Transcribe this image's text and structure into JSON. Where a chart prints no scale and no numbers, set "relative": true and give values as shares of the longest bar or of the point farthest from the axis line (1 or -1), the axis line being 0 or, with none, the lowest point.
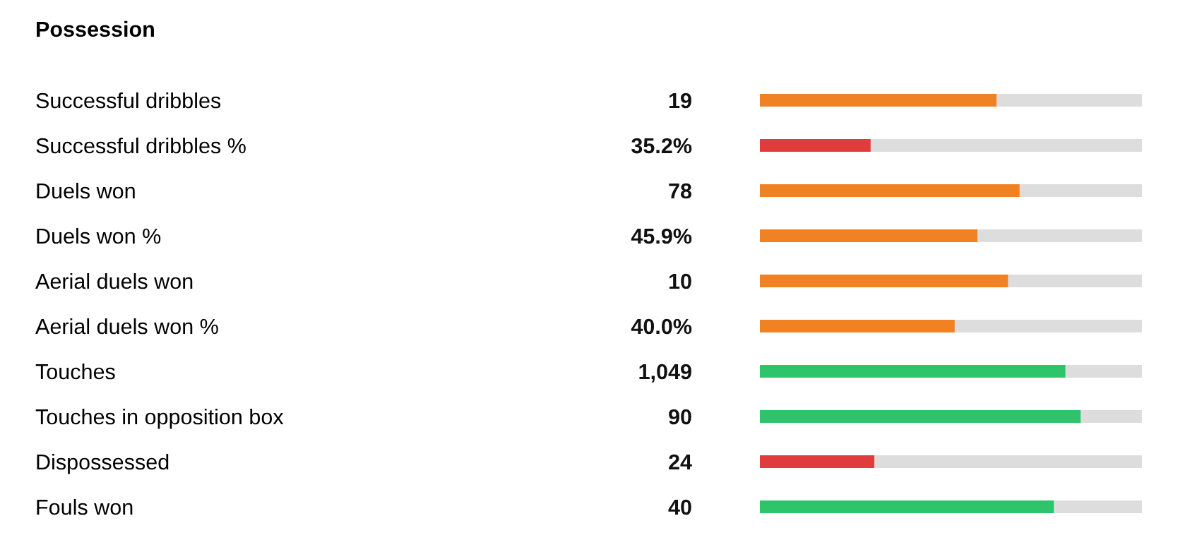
{
  "chart_data": {
    "type": "bar",
    "title": "Possession",
    "orientation": "horizontal",
    "stacked": true,
    "relative": true,
    "grid": false,
    "categories": [
      "Successful dribbles",
      "Successful dribbles %",
      "Duels won",
      "Duels won %",
      "Aerial duels won",
      "Aerial duels won %",
      "Touches",
      "Touches in opposition box",
      "Dispossessed",
      "Fouls won"
    ],
    "value_labels": [
      "19",
      "35.2%",
      "78",
      "45.9%",
      "10",
      "40.0%",
      "1,049",
      "90",
      "24",
      "40"
    ],
    "series": [
      {
        "colors": [
          "#f08224",
          "#e03c3c",
          "#f08224",
          "#f08224",
          "#f08224",
          "#f08224",
          "#2ec46c",
          "#2ec46c",
          "#e03c3c",
          "#2ec46c"
        ],
        "values": [
          0.62,
          0.29,
          0.68,
          0.57,
          0.65,
          0.51,
          0.8,
          0.84,
          0.3,
          0.77
        ]
      },
      {
        "color": "#dddddd",
        "values": [
          0.38,
          0.71,
          0.32,
          0.43,
          0.35,
          0.49,
          0.2,
          0.16,
          0.7,
          0.23
        ]
      }
    ]
  }
}
